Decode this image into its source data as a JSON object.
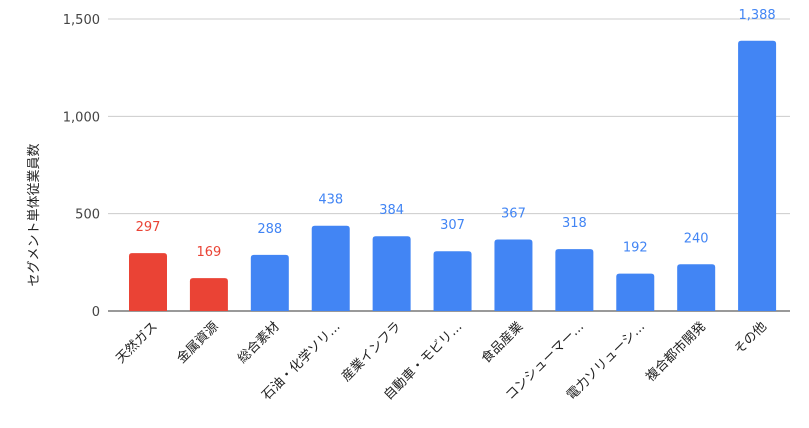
{
  "chart_data": {
    "type": "bar",
    "ylabel": "セグメント単体従業員数",
    "xlabel": "",
    "ylim": [
      0,
      1500
    ],
    "yticks": [
      0,
      500,
      1000,
      1500
    ],
    "ytick_labels": [
      "0",
      "500",
      "1,000",
      "1,500"
    ],
    "grid": true,
    "categories": [
      "天然ガス",
      "金属資源",
      "総合素材",
      "石油・化学ソリ…",
      "産業インフラ",
      "自動車・モビリ…",
      "食品産業",
      "コンシューマー…",
      "電力ソリューシ…",
      "複合都市開発",
      "その他"
    ],
    "values": [
      297,
      169,
      288,
      438,
      384,
      307,
      367,
      318,
      192,
      240,
      1388
    ],
    "value_labels": [
      "297",
      "169",
      "288",
      "438",
      "384",
      "307",
      "367",
      "318",
      "192",
      "240",
      "1,388"
    ],
    "bar_colors": [
      "#ea4335",
      "#ea4335",
      "#4285f4",
      "#4285f4",
      "#4285f4",
      "#4285f4",
      "#4285f4",
      "#4285f4",
      "#4285f4",
      "#4285f4",
      "#4285f4"
    ]
  }
}
